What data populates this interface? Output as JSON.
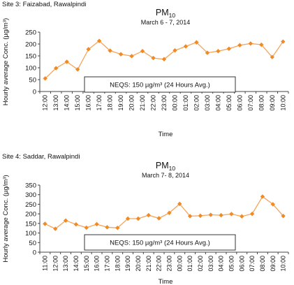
{
  "chart_data": [
    {
      "type": "line",
      "site_label": "Site 3: Faizabad, Rawalpindi",
      "title": "PM",
      "title_sub": "10",
      "subtitle": "March 6 - 7, 2014",
      "xlabel": "Time",
      "ylabel": "Hourly average Conc. (µg/m³)",
      "categories": [
        "12:00",
        "13:00",
        "14:00",
        "15:00",
        "16:00",
        "17:00",
        "18:00",
        "19:00",
        "20:00",
        "21:00",
        "22:00",
        "23:00",
        "00:00",
        "01:00",
        "02:00",
        "03:00",
        "04:00",
        "05:00",
        "06:00",
        "07:00",
        "08:00",
        "09:00",
        "10:00"
      ],
      "values": [
        55,
        98,
        125,
        93,
        178,
        213,
        172,
        157,
        149,
        170,
        141,
        136,
        173,
        190,
        207,
        163,
        170,
        180,
        195,
        202,
        197,
        145,
        210
      ],
      "yticks": [
        0,
        50,
        100,
        150,
        200,
        250
      ],
      "ylim": [
        0,
        250
      ],
      "grid": false,
      "line_color": "#f5a55a",
      "marker_color": "#f08a24",
      "annotation": "NEQS: 150 µg/m³  (24 Hours Avg.)"
    },
    {
      "type": "line",
      "site_label": "Site 4: Saddar, Rawalpindi",
      "title": "PM",
      "title_sub": "10",
      "subtitle": "March 7- 8, 2014",
      "xlabel": "Time",
      "ylabel": "Hourly average Conc. (µg/m³)",
      "categories": [
        "11:00",
        "12:00",
        "13:00",
        "14:00",
        "15:00",
        "16:00",
        "17:00",
        "18:00",
        "19:00",
        "20:00",
        "21:00",
        "22:00",
        "23:00",
        "00:00",
        "01:00",
        "02:00",
        "03:00",
        "04:00",
        "05:00",
        "06:00",
        "07:00",
        "08:00",
        "09:00",
        "10:00"
      ],
      "values": [
        148,
        122,
        165,
        145,
        128,
        146,
        130,
        127,
        175,
        175,
        193,
        177,
        205,
        252,
        188,
        190,
        195,
        193,
        199,
        187,
        200,
        290,
        250,
        189
      ],
      "yticks": [
        0,
        50,
        100,
        150,
        200,
        250,
        300,
        350
      ],
      "ylim": [
        0,
        350
      ],
      "grid": false,
      "line_color": "#f5a55a",
      "marker_color": "#f08a24",
      "annotation": "NEQS: 150 µg/m³  (24 Hours Avg.)"
    }
  ]
}
